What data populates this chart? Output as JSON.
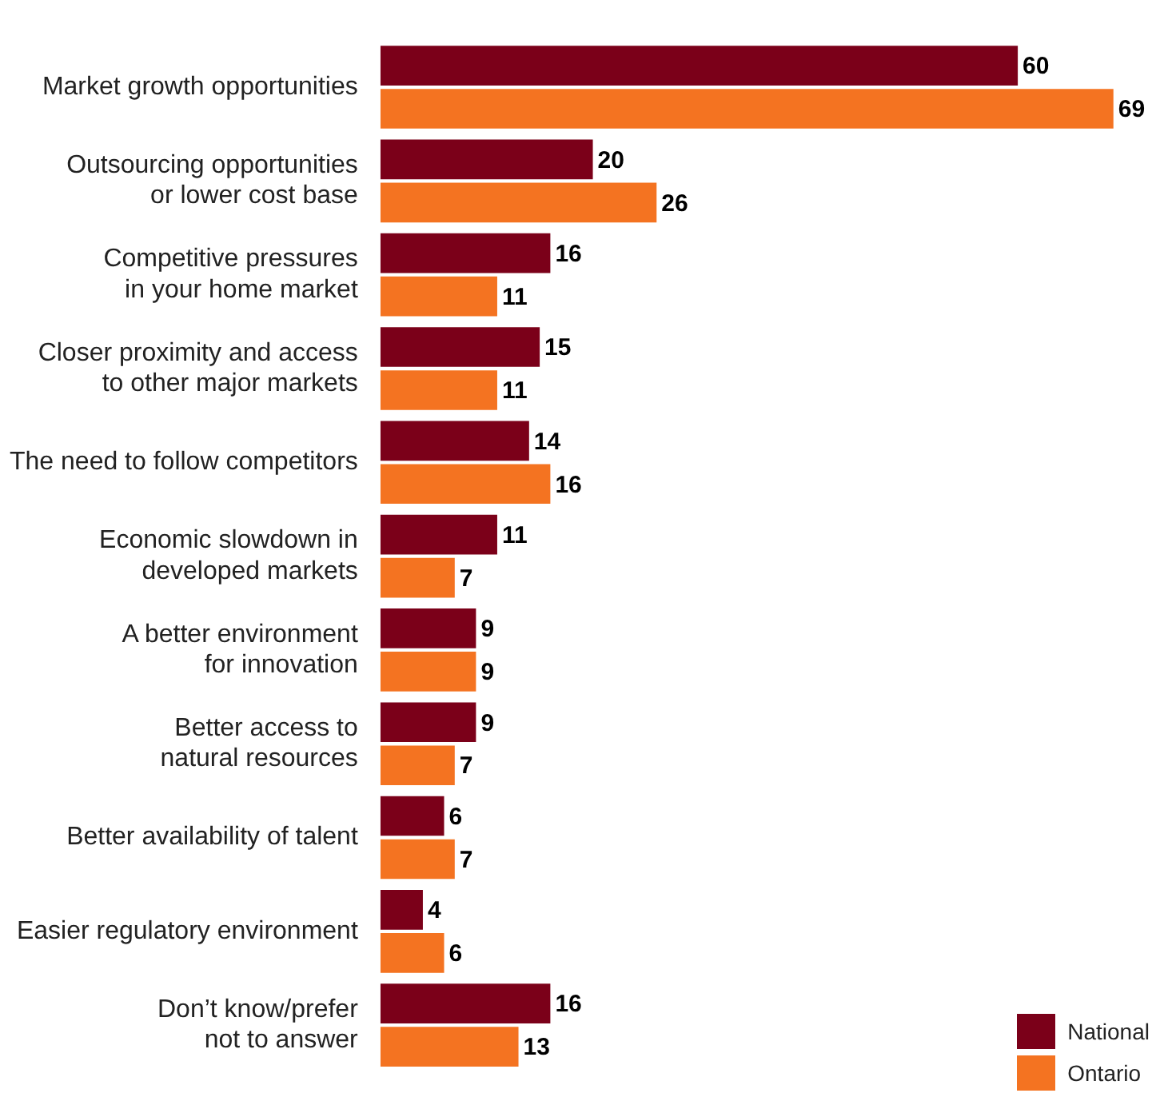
{
  "chart_data": {
    "type": "bar",
    "orientation": "horizontal",
    "data_labels": true,
    "legend": "bottom right",
    "categories": [
      "Market growth opportunities",
      "Outsourcing opportunities\nor lower cost base",
      "Competitive pressures\nin your home market",
      "Closer proximity and access\nto other major markets",
      "The need to follow competitors",
      "Economic slowdown in\ndeveloped markets",
      "A better environment\nfor innovation",
      "Better access to\nnatural resources",
      "Better availability of talent",
      "Easier regulatory environment",
      "Don’t know/prefer\nnot to answer"
    ],
    "series": [
      {
        "name": "National",
        "color": "#7b0019",
        "values": [
          60,
          20,
          16,
          15,
          14,
          11,
          9,
          9,
          6,
          4,
          16
        ]
      },
      {
        "name": "Ontario",
        "color": "#f47321",
        "values": [
          69,
          26,
          11,
          11,
          16,
          7,
          9,
          7,
          7,
          6,
          13
        ]
      }
    ]
  }
}
